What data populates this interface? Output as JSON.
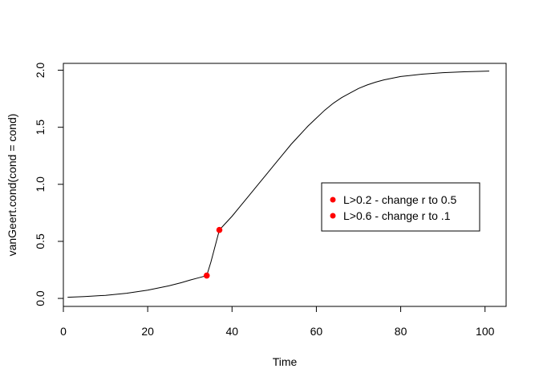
{
  "chart_data": {
    "type": "line",
    "title": "",
    "xlabel": "Time",
    "ylabel": "vanGeert.cond(cond = cond)",
    "xlim": [
      0,
      105
    ],
    "ylim": [
      -0.07,
      2.06
    ],
    "x_ticks": [
      0,
      20,
      40,
      60,
      80,
      100
    ],
    "y_ticks": [
      0.0,
      0.5,
      1.0,
      1.5,
      2.0
    ],
    "x_tick_labels": [
      "0",
      "20",
      "40",
      "60",
      "80",
      "100"
    ],
    "y_tick_labels": [
      "0.0",
      "0.5",
      "1.0",
      "1.5",
      "2.0"
    ],
    "grid": false,
    "legend_position": "right-center",
    "series": [
      {
        "color": "#000000",
        "x": [
          1,
          5,
          10,
          15,
          20,
          25,
          28,
          30,
          32,
          34,
          35,
          36,
          37,
          38,
          40,
          42,
          44,
          46,
          48,
          50,
          52,
          54,
          56,
          58,
          60,
          62,
          64,
          66,
          68,
          70,
          72,
          74,
          76,
          78,
          80,
          85,
          90,
          95,
          101
        ],
        "y": [
          0.01,
          0.016,
          0.027,
          0.045,
          0.072,
          0.11,
          0.138,
          0.16,
          0.18,
          0.2,
          0.32,
          0.46,
          0.6,
          0.64,
          0.72,
          0.81,
          0.9,
          0.99,
          1.08,
          1.17,
          1.26,
          1.35,
          1.43,
          1.51,
          1.58,
          1.65,
          1.71,
          1.76,
          1.8,
          1.84,
          1.87,
          1.895,
          1.915,
          1.93,
          1.945,
          1.965,
          1.978,
          1.986,
          1.992
        ]
      }
    ],
    "points": [
      {
        "x": 34,
        "y": 0.2,
        "color": "#ff0000"
      },
      {
        "x": 37,
        "y": 0.6,
        "color": "#ff0000"
      }
    ],
    "legend": [
      {
        "label": "L>0.2 - change r to 0.5",
        "color": "#ff0000"
      },
      {
        "label": "L>0.6 - change r to .1",
        "color": "#ff0000"
      }
    ]
  }
}
